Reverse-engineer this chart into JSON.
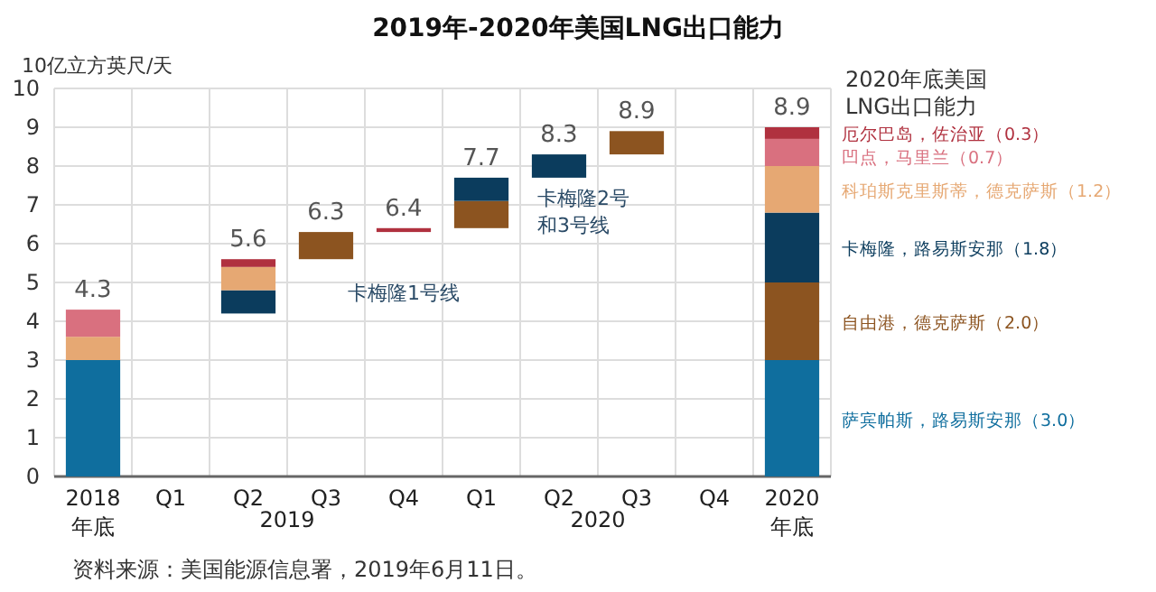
{
  "chart_data": {
    "type": "bar",
    "title": "2019年-2020年美国LNG出口能力",
    "ylabel": "10亿立方英尺/天",
    "categories": [
      "2018\n年底",
      "Q1",
      "Q2",
      "Q3",
      "Q4",
      "Q1",
      "Q2",
      "Q3",
      "Q4",
      "2020\n年底"
    ],
    "series": [
      {
        "name": "萨宾帕斯，路易斯安那（3.0）",
        "color": "#0f6e9e",
        "values": [
          3.0,
          null,
          null,
          null,
          null,
          null,
          null,
          null,
          null,
          3.0
        ],
        "base": [
          0,
          null,
          null,
          null,
          null,
          null,
          null,
          null,
          null,
          0
        ]
      },
      {
        "name": "自由港，德克萨斯（2.0）",
        "color": "#8c5420",
        "values": [
          null,
          null,
          null,
          0.7,
          null,
          0.7,
          null,
          0.6,
          null,
          2.0
        ],
        "base": [
          null,
          null,
          null,
          5.6,
          null,
          6.4,
          null,
          8.3,
          null,
          3.0
        ]
      },
      {
        "name": "卡梅隆，路易斯安那（1.8）",
        "color": "#0b3c5d",
        "values": [
          null,
          null,
          0.6,
          null,
          null,
          0.6,
          0.6,
          null,
          null,
          1.8
        ],
        "base": [
          null,
          null,
          4.2,
          null,
          null,
          7.1,
          7.7,
          null,
          null,
          5.0
        ]
      },
      {
        "name": "科珀斯克里斯蒂，德克萨斯（1.2）",
        "color": "#e6a873",
        "values": [
          0.6,
          null,
          0.6,
          null,
          null,
          null,
          null,
          null,
          null,
          1.2
        ],
        "base": [
          3.0,
          null,
          4.8,
          null,
          null,
          null,
          null,
          null,
          null,
          6.8
        ]
      },
      {
        "name": "凹点，马里兰（0.7）",
        "color": "#d9707f",
        "values": [
          0.7,
          null,
          null,
          null,
          null,
          null,
          null,
          null,
          null,
          0.7
        ],
        "base": [
          3.6,
          null,
          null,
          null,
          null,
          null,
          null,
          null,
          null,
          8.0
        ]
      },
      {
        "name": "厄尔巴岛，佐治亚（0.3）",
        "color": "#b0313f",
        "values": [
          null,
          null,
          0.2,
          null,
          0.1,
          null,
          null,
          null,
          null,
          0.3
        ],
        "base": [
          null,
          null,
          5.4,
          null,
          6.3,
          null,
          null,
          null,
          null,
          8.7
        ]
      }
    ],
    "legend_title": "2020年底美国\nLNG出口能力",
    "legend": "right",
    "ylim": [
      0,
      10
    ],
    "yticks": [
      0,
      1,
      2,
      3,
      4,
      5,
      6,
      7,
      8,
      9,
      10
    ],
    "grid": true,
    "annotations": [
      "卡梅隆1号线",
      "卡梅隆2号和3号线",
      "2019",
      "2020",
      "资料来源：美国能源信息署，2019年6月11日。",
      "4.3",
      "5.6",
      "6.3",
      "6.4",
      "7.7",
      "8.3",
      "8.9",
      "8.9"
    ]
  }
}
